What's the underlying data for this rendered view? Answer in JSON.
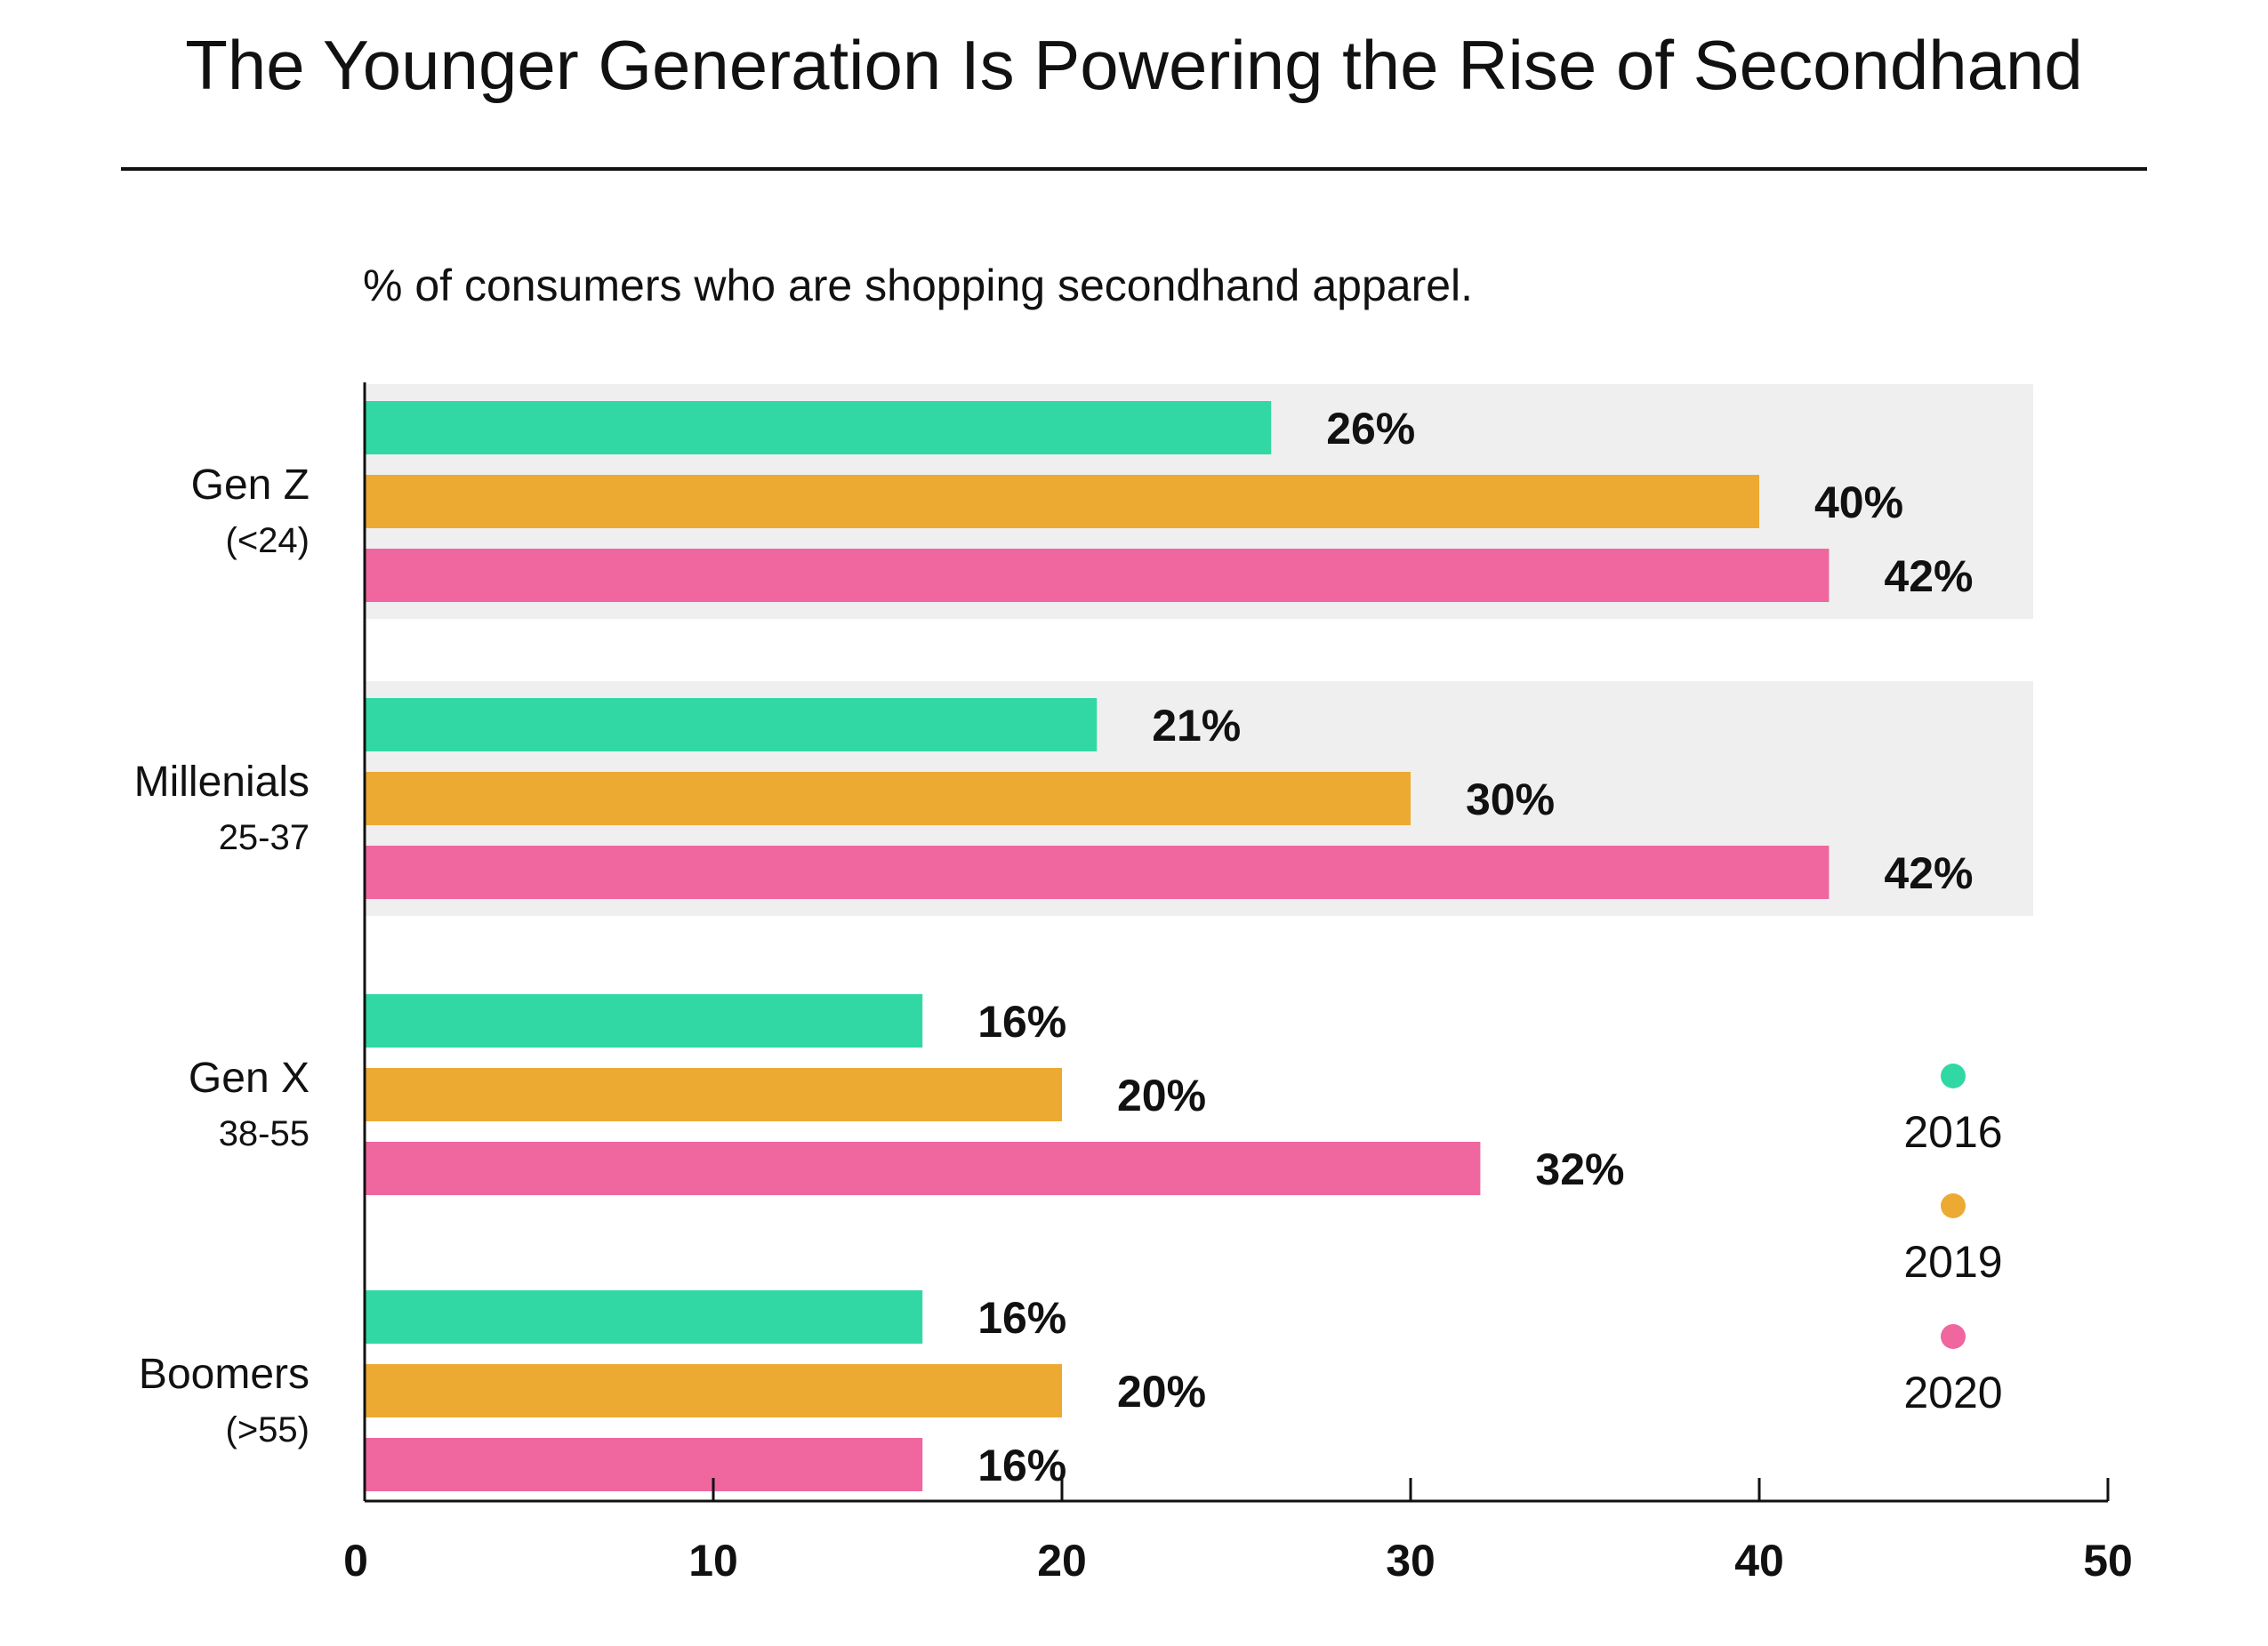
{
  "chart_data": {
    "type": "bar",
    "orientation": "horizontal",
    "title": "The Younger Generation Is Powering the Rise of Secondhand",
    "subtitle": "% of consumers who are shopping secondhand apparel.",
    "categories": [
      {
        "name": "Gen Z",
        "sub": "(<24)"
      },
      {
        "name": "Millenials",
        "sub": "25-37"
      },
      {
        "name": "Gen X",
        "sub": "38-55"
      },
      {
        "name": "Boomers",
        "sub": "(>55)"
      }
    ],
    "series": [
      {
        "name": "2016",
        "color": "#31d8a4",
        "values": [
          26,
          21,
          16,
          16
        ],
        "labels": [
          "26%",
          "21%",
          "16%",
          "16%"
        ]
      },
      {
        "name": "2019",
        "color": "#ecaa32",
        "values": [
          40,
          30,
          20,
          20
        ],
        "labels": [
          "40%",
          "30%",
          "20%",
          "20%"
        ]
      },
      {
        "name": "2020",
        "color": "#ef679e",
        "values": [
          42,
          42,
          32,
          16
        ],
        "labels": [
          "42%",
          "42%",
          "32%",
          "16%"
        ]
      }
    ],
    "highlighted_categories": [
      "Gen Z",
      "Millenials"
    ],
    "xlim": [
      0,
      50
    ],
    "xticks": [
      0,
      10,
      20,
      30,
      40,
      50
    ],
    "xlabel": "",
    "ylabel": "",
    "legend": "right",
    "grid": false
  }
}
